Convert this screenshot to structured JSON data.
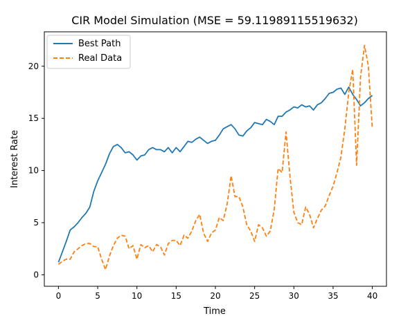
{
  "chart_data": {
    "type": "line",
    "title": "CIR Model Simulation (MSE = 59.11989115519632)",
    "xlabel": "Time",
    "ylabel": "Interest Rate",
    "xlim": [
      -1.8,
      41.8
    ],
    "ylim": [
      -1.1,
      23.3
    ],
    "xticks": [
      0,
      5,
      10,
      15,
      20,
      25,
      30,
      35,
      40
    ],
    "xtick_labels": [
      "0",
      "5",
      "10",
      "15",
      "20",
      "25",
      "30",
      "35",
      "40"
    ],
    "yticks": [
      0,
      5,
      10,
      15,
      20
    ],
    "ytick_labels": [
      "0",
      "5",
      "10",
      "15",
      "20"
    ],
    "grid": false,
    "legend_position": "top-left",
    "series": [
      {
        "name": "Best Path",
        "color": "#1f77b4",
        "style": "solid",
        "points": [
          [
            0,
            1.2
          ],
          [
            0.5,
            2.2
          ],
          [
            1,
            3.2
          ],
          [
            1.5,
            4.3
          ],
          [
            2,
            4.6
          ],
          [
            2.5,
            5
          ],
          [
            3,
            5.5
          ],
          [
            3.5,
            5.9
          ],
          [
            4,
            6.5
          ],
          [
            4.5,
            8
          ],
          [
            5,
            9
          ],
          [
            5.5,
            9.8
          ],
          [
            6,
            10.6
          ],
          [
            6.5,
            11.6
          ],
          [
            7,
            12.3
          ],
          [
            7.5,
            12.5
          ],
          [
            8,
            12.2
          ],
          [
            8.5,
            11.7
          ],
          [
            9,
            11.8
          ],
          [
            9.5,
            11.5
          ],
          [
            10,
            11
          ],
          [
            10.5,
            11.4
          ],
          [
            11,
            11.5
          ],
          [
            11.5,
            12
          ],
          [
            12,
            12.2
          ],
          [
            12.5,
            12
          ],
          [
            13,
            12
          ],
          [
            13.5,
            11.8
          ],
          [
            14,
            12.2
          ],
          [
            14.5,
            11.7
          ],
          [
            15,
            12.2
          ],
          [
            15.5,
            11.8
          ],
          [
            16,
            12.3
          ],
          [
            16.5,
            12.8
          ],
          [
            17,
            12.7
          ],
          [
            17.5,
            13
          ],
          [
            18,
            13.2
          ],
          [
            18.5,
            12.9
          ],
          [
            19,
            12.6
          ],
          [
            19.5,
            12.8
          ],
          [
            20,
            12.9
          ],
          [
            20.5,
            13.4
          ],
          [
            21,
            14
          ],
          [
            21.5,
            14.2
          ],
          [
            22,
            14.4
          ],
          [
            22.5,
            14
          ],
          [
            23,
            13.4
          ],
          [
            23.5,
            13.3
          ],
          [
            24,
            13.8
          ],
          [
            24.5,
            14.1
          ],
          [
            25,
            14.6
          ],
          [
            25.5,
            14.5
          ],
          [
            26,
            14.4
          ],
          [
            26.5,
            14.9
          ],
          [
            27,
            14.7
          ],
          [
            27.5,
            14.4
          ],
          [
            28,
            15.2
          ],
          [
            28.5,
            15.2
          ],
          [
            29,
            15.6
          ],
          [
            29.5,
            15.8
          ],
          [
            30,
            16.1
          ],
          [
            30.5,
            16
          ],
          [
            31,
            16.3
          ],
          [
            31.5,
            16.1
          ],
          [
            32,
            16.2
          ],
          [
            32.5,
            15.8
          ],
          [
            33,
            16.3
          ],
          [
            33.5,
            16.5
          ],
          [
            34,
            16.9
          ],
          [
            34.5,
            17.4
          ],
          [
            35,
            17.5
          ],
          [
            35.5,
            17.8
          ],
          [
            36,
            17.9
          ],
          [
            36.5,
            17.3
          ],
          [
            37,
            18
          ],
          [
            37.5,
            17.3
          ],
          [
            38,
            16.8
          ],
          [
            38.5,
            16.2
          ],
          [
            39,
            16.5
          ],
          [
            39.5,
            16.9
          ],
          [
            40,
            17.2
          ]
        ]
      },
      {
        "name": "Real Data",
        "color": "#ff7f0e",
        "style": "dashed",
        "points": [
          [
            0,
            1
          ],
          [
            0.5,
            1.3
          ],
          [
            1,
            1.5
          ],
          [
            1.5,
            1.5
          ],
          [
            2,
            2.2
          ],
          [
            2.5,
            2.5
          ],
          [
            3,
            2.8
          ],
          [
            3.5,
            3
          ],
          [
            4,
            3
          ],
          [
            4.5,
            2.7
          ],
          [
            5,
            2.7
          ],
          [
            5.5,
            1.5
          ],
          [
            6,
            0.5
          ],
          [
            6.5,
            1.8
          ],
          [
            7,
            2.8
          ],
          [
            7.5,
            3.5
          ],
          [
            8,
            3.8
          ],
          [
            8.5,
            3.7
          ],
          [
            9,
            2.5
          ],
          [
            9.5,
            2.8
          ],
          [
            10,
            1.5
          ],
          [
            10.5,
            2.9
          ],
          [
            11,
            2.6
          ],
          [
            11.5,
            2.8
          ],
          [
            12,
            2.2
          ],
          [
            12.5,
            2.9
          ],
          [
            13,
            2.7
          ],
          [
            13.5,
            1.9
          ],
          [
            14,
            3
          ],
          [
            14.5,
            3.3
          ],
          [
            15,
            3.3
          ],
          [
            15.5,
            2.8
          ],
          [
            16,
            3.8
          ],
          [
            16.5,
            3.5
          ],
          [
            17,
            4.2
          ],
          [
            17.5,
            5.2
          ],
          [
            18,
            5.8
          ],
          [
            18.5,
            4
          ],
          [
            19,
            3.2
          ],
          [
            19.5,
            4
          ],
          [
            20,
            4.3
          ],
          [
            20.5,
            5.5
          ],
          [
            21,
            5.2
          ],
          [
            21.5,
            6.8
          ],
          [
            22,
            9.5
          ],
          [
            22.5,
            7.5
          ],
          [
            23,
            7.5
          ],
          [
            23.5,
            6.5
          ],
          [
            24,
            4.8
          ],
          [
            24.5,
            4.2
          ],
          [
            25,
            3.2
          ],
          [
            25.5,
            4.8
          ],
          [
            26,
            4.5
          ],
          [
            26.5,
            3.7
          ],
          [
            27,
            4.2
          ],
          [
            27.5,
            6.3
          ],
          [
            28,
            10.2
          ],
          [
            28.5,
            9.8
          ],
          [
            29,
            13.7
          ],
          [
            29.5,
            9.5
          ],
          [
            30,
            6
          ],
          [
            30.5,
            5
          ],
          [
            31,
            4.8
          ],
          [
            31.5,
            6.5
          ],
          [
            32,
            5.8
          ],
          [
            32.5,
            4.5
          ],
          [
            33,
            5.4
          ],
          [
            33.5,
            6.2
          ],
          [
            34,
            6.6
          ],
          [
            34.5,
            7.6
          ],
          [
            35,
            8.5
          ],
          [
            35.5,
            9.8
          ],
          [
            36,
            11.3
          ],
          [
            36.5,
            14
          ],
          [
            37,
            17.5
          ],
          [
            37.5,
            19.7
          ],
          [
            38,
            10.5
          ],
          [
            38.5,
            19
          ],
          [
            39,
            22
          ],
          [
            39.5,
            20
          ],
          [
            40,
            14
          ]
        ]
      }
    ]
  }
}
